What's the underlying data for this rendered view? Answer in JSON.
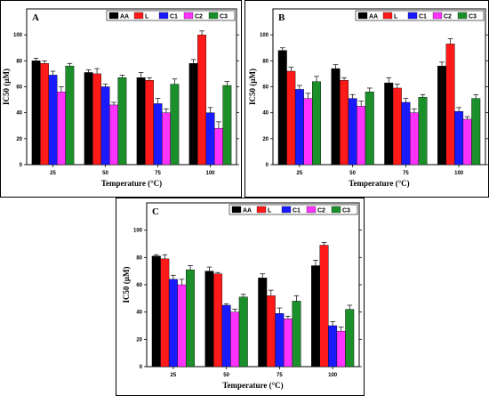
{
  "colors": {
    "AA": "#000000",
    "L": "#ff1a1a",
    "C1": "#1a1aff",
    "C2": "#ff33ff",
    "C3": "#1a8f2a"
  },
  "chart_data": [
    {
      "type": "bar",
      "panel": "A",
      "categories": [
        "25",
        "50",
        "75",
        "100"
      ],
      "series": [
        {
          "name": "AA",
          "values": [
            80,
            71,
            67,
            78
          ],
          "errors": [
            2,
            2,
            4,
            3
          ]
        },
        {
          "name": "L",
          "values": [
            78,
            70,
            65,
            100
          ],
          "errors": [
            2,
            4,
            2,
            3
          ]
        },
        {
          "name": "C1",
          "values": [
            69,
            60,
            47,
            40
          ],
          "errors": [
            3,
            2,
            4,
            4
          ]
        },
        {
          "name": "C2",
          "values": [
            56,
            46,
            40,
            28
          ],
          "errors": [
            4,
            2,
            3,
            5
          ]
        },
        {
          "name": "C3",
          "values": [
            76,
            67,
            62,
            61
          ],
          "errors": [
            2,
            2,
            4,
            3
          ]
        }
      ],
      "xlabel": "Temperature (°C)",
      "ylabel": "IC50 (µM)",
      "ylim": [
        0,
        120
      ],
      "yticks": [
        "0",
        "20",
        "40",
        "60",
        "80",
        "100"
      ],
      "legend": "top-right"
    },
    {
      "type": "bar",
      "panel": "B",
      "categories": [
        "25",
        "50",
        "75",
        "100"
      ],
      "series": [
        {
          "name": "AA",
          "values": [
            88,
            74,
            63,
            76
          ],
          "errors": [
            2,
            3,
            4,
            3
          ]
        },
        {
          "name": "L",
          "values": [
            72,
            65,
            59,
            93
          ],
          "errors": [
            3,
            2,
            3,
            4
          ]
        },
        {
          "name": "C1",
          "values": [
            58,
            51,
            48,
            41
          ],
          "errors": [
            3,
            3,
            3,
            3
          ]
        },
        {
          "name": "C2",
          "values": [
            51,
            45,
            40,
            35
          ],
          "errors": [
            4,
            4,
            3,
            2
          ]
        },
        {
          "name": "C3",
          "values": [
            64,
            56,
            52,
            51
          ],
          "errors": [
            4,
            3,
            2,
            3
          ]
        }
      ],
      "xlabel": "Temperature (°C)",
      "ylabel": "IC50 (µM)",
      "ylim": [
        0,
        120
      ],
      "yticks": [
        "0",
        "20",
        "40",
        "60",
        "80",
        "100"
      ],
      "legend": "top-right"
    },
    {
      "type": "bar",
      "panel": "C",
      "categories": [
        "25",
        "50",
        "75",
        "100"
      ],
      "series": [
        {
          "name": "AA",
          "values": [
            81,
            70,
            65,
            74
          ],
          "errors": [
            1,
            3,
            3,
            4
          ]
        },
        {
          "name": "L",
          "values": [
            79,
            68,
            52,
            89
          ],
          "errors": [
            3,
            1,
            4,
            2
          ]
        },
        {
          "name": "C1",
          "values": [
            64,
            45,
            39,
            30
          ],
          "errors": [
            3,
            1,
            4,
            3
          ]
        },
        {
          "name": "C2",
          "values": [
            60,
            40,
            35,
            26
          ],
          "errors": [
            4,
            2,
            2,
            3
          ]
        },
        {
          "name": "C3",
          "values": [
            71,
            51,
            48,
            42
          ],
          "errors": [
            3,
            2,
            4,
            3
          ]
        }
      ],
      "xlabel": "Temperature (°C)",
      "ylabel": "IC50 (µM)",
      "ylim": [
        0,
        120
      ],
      "yticks": [
        "0",
        "20",
        "40",
        "60",
        "80",
        "100"
      ],
      "legend": "top-right"
    }
  ]
}
